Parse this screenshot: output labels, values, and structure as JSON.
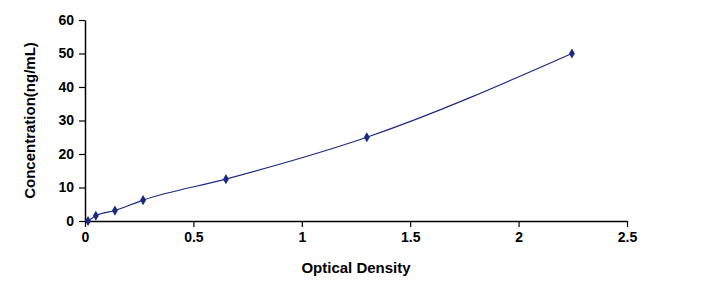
{
  "chart_data": {
    "type": "line",
    "x": [
      0.014,
      0.05,
      0.138,
      0.268,
      0.65,
      1.3,
      2.246
    ],
    "values": [
      0,
      1.56,
      3.12,
      6.25,
      12.5,
      25,
      50
    ],
    "xlabel": "Optical Density",
    "ylabel": "Concentration(ng/mL)",
    "xlim": [
      0,
      2.5
    ],
    "xticks": [
      0,
      0.5,
      1,
      1.5,
      2,
      2.5
    ],
    "ylim": [
      0,
      60
    ],
    "yticks": [
      0,
      10,
      20,
      30,
      40,
      50,
      60
    ],
    "color": "#1b2a80",
    "marker": "diamond",
    "grid": false
  }
}
